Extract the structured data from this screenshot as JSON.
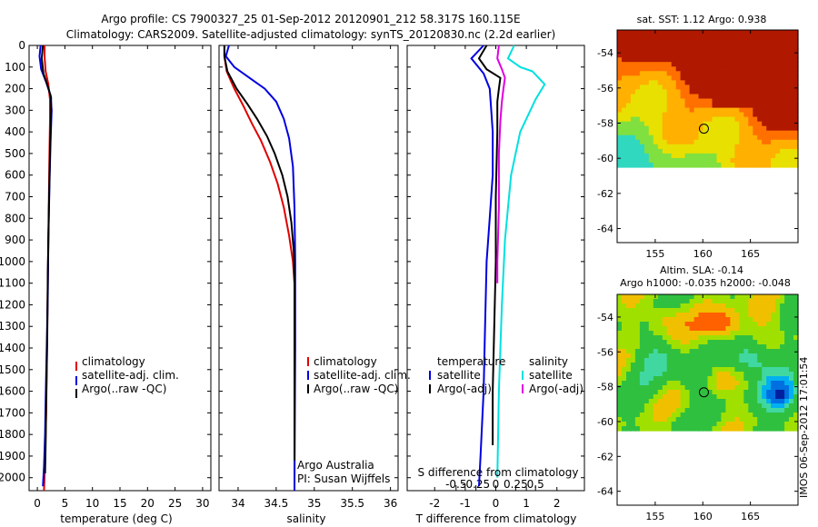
{
  "header": {
    "line1": "Argo profile: CS 7900327_25 01-Sep-2012 20120901_212 58.317S 160.115E",
    "line2": "Climatology: CARS2009. Satellite-adjusted climatology: synTS_20120830.nc (2.2d earlier)"
  },
  "side_label": "IMOS 06-Sep-2012 17:01:54",
  "colors": {
    "climatology": "#e00000",
    "satellite": "#0000e0",
    "argo": "#000000",
    "sat_salinity": "#00e0e0",
    "argo_adj_salinity": "#e000e0"
  },
  "chart_data": [
    {
      "id": "temperature",
      "type": "line",
      "title": "",
      "xlabel": "temperature (deg C)",
      "ylabel": "",
      "xlim": [
        -1.5,
        31.5
      ],
      "ylim": [
        2060,
        0
      ],
      "xticks": [
        0,
        5,
        10,
        15,
        20,
        25,
        30
      ],
      "yticks": [
        0,
        100,
        200,
        300,
        400,
        500,
        600,
        700,
        800,
        900,
        1000,
        1100,
        1200,
        1300,
        1400,
        1500,
        1600,
        1700,
        1800,
        1900,
        2000
      ],
      "legend": [
        "climatology",
        "satellite-adj. clim.",
        "Argo(..raw -QC)"
      ],
      "series": [
        {
          "name": "climatology",
          "color": "#e00000",
          "x": [
            1.3,
            1.3,
            1.5,
            2.0,
            2.3,
            2.3,
            2.2,
            2.1,
            2.0,
            1.9,
            1.8,
            1.7,
            1.6,
            1.5,
            1.4,
            1.3,
            1.2
          ],
          "y": [
            0,
            50,
            120,
            180,
            250,
            350,
            500,
            700,
            900,
            1100,
            1300,
            1500,
            1700,
            1800,
            1900,
            2000,
            2060
          ]
        },
        {
          "name": "satellite-adj. clim.",
          "color": "#0000e0",
          "x": [
            0.6,
            0.4,
            0.7,
            1.6,
            2.4,
            2.6,
            2.4,
            2.2,
            2.0,
            1.9,
            1.7,
            1.5,
            1.4,
            1.2,
            1.0
          ],
          "y": [
            0,
            50,
            110,
            170,
            230,
            300,
            450,
            650,
            900,
            1150,
            1400,
            1650,
            1800,
            1950,
            2040
          ]
        },
        {
          "name": "Argo(..raw -QC)",
          "color": "#000000",
          "x": [
            1.0,
            0.8,
            1.1,
            1.9,
            2.5,
            2.5,
            2.3,
            2.1,
            1.9,
            1.8,
            1.6,
            1.5,
            1.4
          ],
          "y": [
            0,
            60,
            130,
            190,
            240,
            300,
            500,
            750,
            1050,
            1350,
            1650,
            1850,
            1980
          ]
        }
      ]
    },
    {
      "id": "salinity",
      "type": "line",
      "title": "",
      "xlabel": "salinity",
      "ylabel": "",
      "xlim": [
        33.75,
        36.1
      ],
      "ylim": [
        2060,
        0
      ],
      "xticks": [
        34,
        34.5,
        35,
        35.5,
        36
      ],
      "yticks": [
        0,
        100,
        200,
        300,
        400,
        500,
        600,
        700,
        800,
        900,
        1000,
        1100,
        1200,
        1300,
        1400,
        1500,
        1600,
        1700,
        1800,
        1900,
        2000
      ],
      "legend": [
        "climatology",
        "satellite-adj. clim.",
        "Argo(..raw -QC)"
      ],
      "notes": [
        "Argo Australia",
        "PI: Susan Wijffels"
      ],
      "series": [
        {
          "name": "climatology",
          "color": "#e00000",
          "x": [
            33.82,
            33.82,
            33.85,
            33.95,
            34.07,
            34.18,
            34.3,
            34.42,
            34.52,
            34.6,
            34.67,
            34.72,
            34.74,
            34.74,
            34.74
          ],
          "y": [
            0,
            50,
            120,
            200,
            280,
            360,
            440,
            540,
            640,
            750,
            880,
            1000,
            1100,
            1150,
            2060
          ]
        },
        {
          "name": "satellite-adj. clim.",
          "color": "#0000e0",
          "x": [
            33.88,
            33.84,
            33.95,
            34.15,
            34.35,
            34.5,
            34.6,
            34.67,
            34.72,
            34.74,
            34.75,
            34.75,
            34.74
          ],
          "y": [
            0,
            50,
            100,
            150,
            200,
            260,
            340,
            430,
            560,
            750,
            1000,
            1400,
            2060
          ]
        },
        {
          "name": "Argo(..raw -QC)",
          "color": "#000000",
          "x": [
            33.82,
            33.82,
            33.86,
            33.98,
            34.12,
            34.25,
            34.38,
            34.48,
            34.58,
            34.65,
            34.7,
            34.73,
            34.74,
            34.74,
            34.74
          ],
          "y": [
            0,
            50,
            120,
            200,
            270,
            340,
            420,
            500,
            600,
            700,
            820,
            950,
            1100,
            1300,
            1920
          ]
        }
      ]
    },
    {
      "id": "difference",
      "type": "line",
      "title": "",
      "xlabel": "T difference from climatology",
      "x2label": "S difference from climatology",
      "ylabel": "",
      "xlim": [
        -2.9,
        2.9
      ],
      "ylim": [
        2060,
        0
      ],
      "xticks": [
        -2,
        -1,
        0,
        1,
        2
      ],
      "x2ticks": [
        "-0.5",
        "-0.25",
        "0",
        "0.25",
        "0.5"
      ],
      "yticks": [
        0,
        100,
        200,
        300,
        400,
        500,
        600,
        700,
        800,
        900,
        1000,
        1100,
        1200,
        1300,
        1400,
        1500,
        1600,
        1700,
        1800,
        1900,
        2000
      ],
      "legend": [
        "temperature",
        "satellite",
        "Argo(-adj)",
        "salinity",
        "satellite",
        "Argo(-adj)"
      ],
      "series": [
        {
          "name": "temperature satellite",
          "color": "#0000e0",
          "x": [
            -0.4,
            -0.8,
            -0.4,
            -0.2,
            -0.15,
            -0.1,
            -0.1,
            -0.2,
            -0.3,
            -0.35,
            -0.4,
            -0.5,
            -0.55
          ],
          "y": [
            0,
            60,
            130,
            200,
            300,
            400,
            600,
            800,
            1000,
            1300,
            1600,
            1900,
            2040
          ]
        },
        {
          "name": "temperature Argo(-adj)",
          "color": "#000000",
          "x": [
            -0.3,
            -0.55,
            -0.3,
            0.15,
            0.1,
            0.05,
            0.05,
            0.0,
            0.0,
            -0.05,
            -0.1,
            -0.1
          ],
          "y": [
            0,
            60,
            110,
            150,
            200,
            260,
            400,
            700,
            1000,
            1300,
            1600,
            1850
          ]
        },
        {
          "name": "salinity satellite",
          "color": "#00e0e0",
          "x": [
            0.6,
            0.4,
            0.8,
            1.2,
            1.6,
            1.3,
            0.8,
            0.5,
            0.3,
            0.2,
            0.1,
            0.05
          ],
          "y": [
            0,
            60,
            100,
            120,
            180,
            250,
            400,
            600,
            900,
            1200,
            1600,
            2000
          ]
        },
        {
          "name": "salinity Argo(-adj)",
          "color": "#e000e0",
          "x": [
            0.1,
            0.05,
            0.2,
            0.3,
            0.25,
            0.2,
            0.15,
            0.1,
            0.1,
            0.05,
            0.05
          ],
          "y": [
            0,
            60,
            110,
            150,
            200,
            260,
            350,
            500,
            750,
            1000,
            1100
          ]
        }
      ]
    },
    {
      "id": "sst_map",
      "type": "heatmap",
      "title": "sat. SST: 1.12 Argo: 0.938",
      "xticks": [
        155,
        160,
        165
      ],
      "yticks": [
        -54,
        -56,
        -58,
        -60,
        -62,
        -64
      ],
      "xlim": [
        151,
        170
      ],
      "ylim": [
        -64.8,
        -52.7
      ]
    },
    {
      "id": "sla_map",
      "type": "heatmap",
      "title": "Altim. SLA: -0.14",
      "subtitle": "Argo h1000: -0.035 h2000: -0.048",
      "xticks": [
        155,
        160,
        165
      ],
      "yticks": [
        -54,
        -56,
        -58,
        -60,
        -62,
        -64
      ],
      "xlim": [
        151,
        170
      ],
      "ylim": [
        -64.8,
        -52.7
      ]
    }
  ]
}
